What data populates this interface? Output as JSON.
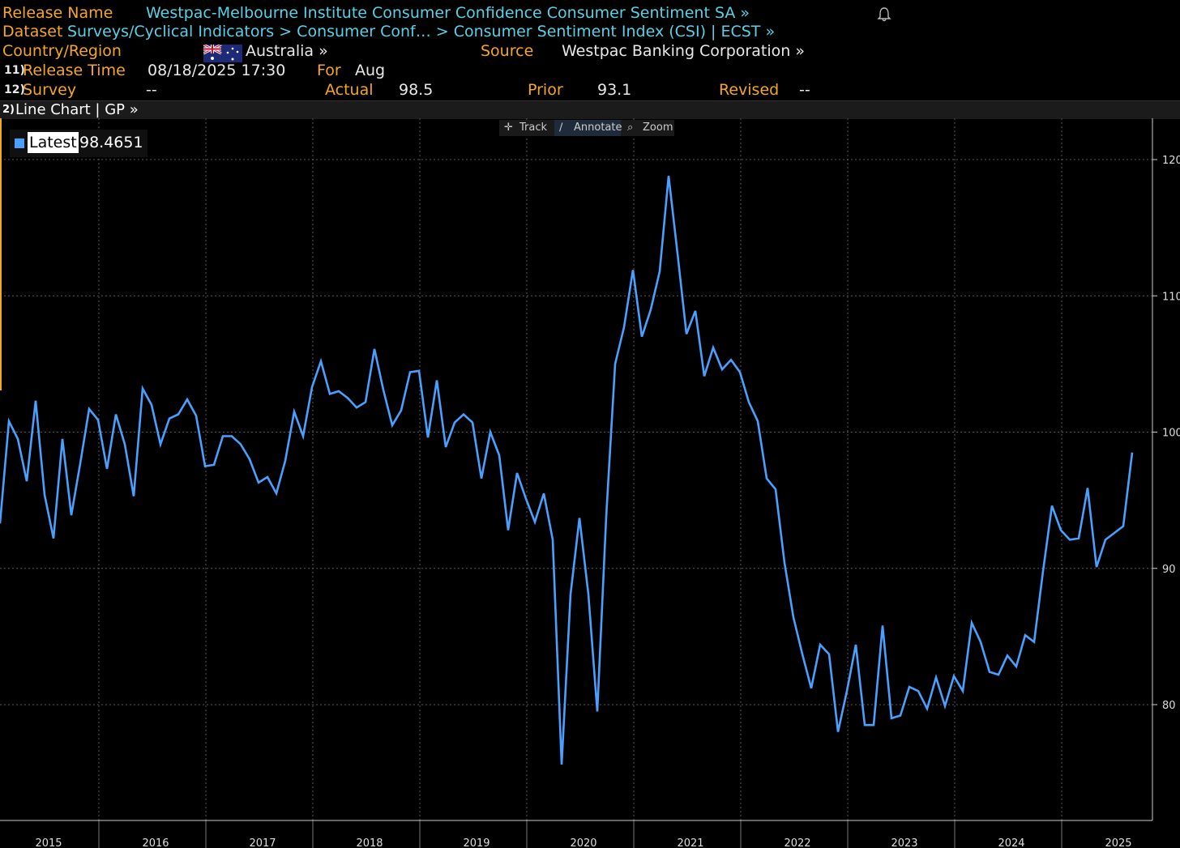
{
  "header": {
    "release_name_label": "Release Name",
    "release_name_value": "Westpac-Melbourne Institute Consumer Confidence Consumer Sentiment SA »",
    "dataset_label": "Dataset",
    "dataset_value": "Surveys/Cyclical Indicators > Consumer Conf… > Consumer Sentiment Index (CSI) | ECST »",
    "country_label": "Country/Region",
    "country_value": "Australia »",
    "source_label": "Source",
    "source_value": "Westpac Banking Corporation »",
    "release_time_num": "11)",
    "release_time_label": "Release Time",
    "release_time_value": "08/18/2025 17:30",
    "for_label": "For",
    "for_value": "Aug",
    "survey_num": "12)",
    "survey_label": "Survey",
    "survey_value": "--",
    "actual_label": "Actual",
    "actual_value": "98.5",
    "prior_label": "Prior",
    "prior_value": "93.1",
    "revised_label": "Revised",
    "revised_value": "--"
  },
  "chart_bar": {
    "num": "2)",
    "label": "Line Chart | GP »"
  },
  "toolbar": {
    "track": "Track",
    "annotate": "Annotate",
    "zoom": "Zoom"
  },
  "legend": {
    "label": "Latest",
    "value": "98.4651"
  },
  "colors": {
    "line": "#4aa0ff",
    "label": "#f5a623",
    "link": "#5ad0e6",
    "background": "#000000"
  },
  "chart_data": {
    "type": "line",
    "x_tick_labels": [
      "2015",
      "2016",
      "2017",
      "2018",
      "2019",
      "2020",
      "2021",
      "2022",
      "2023",
      "2024",
      "2025"
    ],
    "y_tick_labels": [
      "120",
      "110",
      "100",
      "90",
      "80"
    ],
    "ylim": [
      74,
      123
    ],
    "grid": true,
    "series": [
      {
        "values": [
          93.3,
          100.8,
          99.5,
          96.4,
          102.3,
          95.4,
          92.2,
          99.5,
          93.9,
          97.7,
          101.7,
          100.9,
          97.3,
          101.3,
          99.1,
          95.3,
          103.2,
          102.0,
          99.1,
          101.0,
          101.3,
          102.4,
          101.2,
          97.5,
          97.6,
          99.7,
          99.7,
          99.1,
          98.0,
          96.3,
          96.7,
          95.5,
          97.9,
          101.5,
          99.7,
          103.3,
          105.2,
          102.8,
          103.0,
          102.5,
          101.8,
          102.2,
          106.1,
          103.1,
          100.5,
          101.6,
          104.4,
          104.5,
          99.6,
          103.8,
          98.9,
          100.7,
          101.3,
          100.7,
          96.6,
          100.0,
          98.3,
          92.8,
          97.0,
          95.1,
          93.4,
          95.5,
          92.1,
          75.6,
          88.1,
          93.7,
          88.1,
          79.5,
          93.8,
          105.0,
          107.7,
          111.9,
          107.0,
          109.0,
          111.8,
          118.8,
          113.1,
          107.2,
          108.9,
          104.1,
          106.2,
          104.6,
          105.3,
          104.4,
          102.2,
          100.8,
          96.6,
          95.8,
          90.4,
          86.4,
          83.7,
          81.2,
          84.4,
          83.7,
          78.0,
          81.0,
          84.4,
          78.5,
          78.5,
          85.8,
          79.0,
          79.2,
          81.3,
          81.0,
          79.7,
          82.0,
          79.9,
          82.1,
          81.0,
          86.0,
          84.6,
          82.4,
          82.2,
          83.6,
          82.8,
          85.1,
          84.6,
          89.8,
          94.6,
          92.8,
          92.1,
          92.2,
          95.9,
          90.1,
          92.1,
          92.6,
          93.1,
          98.5
        ]
      }
    ]
  }
}
